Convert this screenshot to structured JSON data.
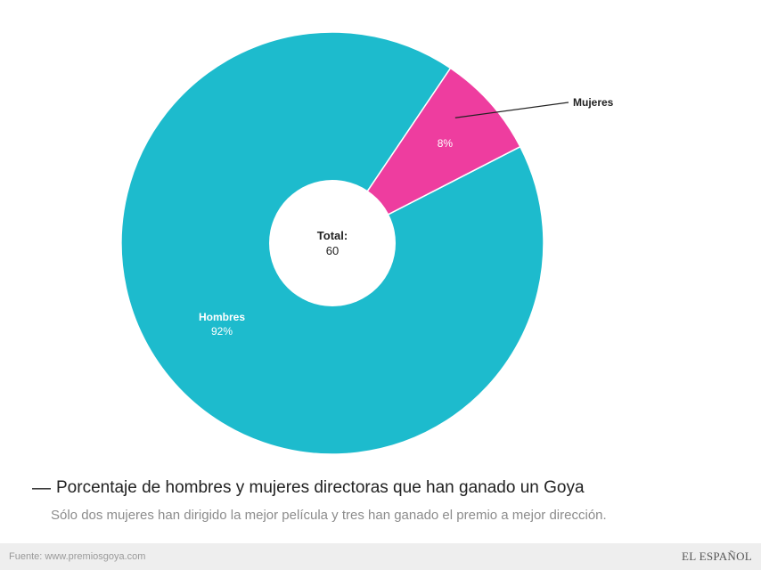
{
  "chart_data": {
    "type": "pie",
    "donut": true,
    "slices": [
      {
        "label": "Hombres",
        "percent_label": "92%",
        "value": 92,
        "color": "#1dbbcd"
      },
      {
        "label": "Mujeres",
        "percent_label": "8%",
        "value": 8,
        "color": "#ee3d9f"
      }
    ],
    "center_label": "Total:",
    "center_value": "60",
    "title": "Porcentaje de hombres y mujeres directoras que han ganado un Goya",
    "subtitle": "Sólo dos mujeres han dirigido la mejor película y tres han ganado el premio a mejor dirección."
  },
  "title_dash": "—",
  "footer": {
    "source": "Fuente: www.premiosgoya.com",
    "brand": "EL ESPAÑOL"
  }
}
